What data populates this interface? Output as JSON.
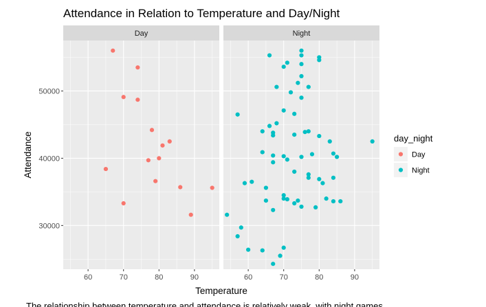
{
  "chart_data": {
    "type": "scatter",
    "title": "Attendance in Relation to Temperature and Day/Night",
    "xlabel": "Temperature",
    "ylabel": "Attendance",
    "facets": [
      "Day",
      "Night"
    ],
    "xlim": [
      53,
      97
    ],
    "ylim": [
      23500,
      57500
    ],
    "x_ticks": [
      60,
      70,
      80,
      90
    ],
    "y_ticks": [
      30000,
      40000,
      50000
    ],
    "y_tick_labels": [
      "30000",
      "40000",
      "50000"
    ],
    "grid": true,
    "legend": {
      "title": "day_night",
      "placement": "right",
      "entries": [
        {
          "label": "Day",
          "color": "#F8766D"
        },
        {
          "label": "Night",
          "color": "#00BFC4"
        }
      ]
    },
    "series": [
      {
        "name": "Day",
        "facet": "Day",
        "color": "#F8766D",
        "points": [
          [
            67,
            56000
          ],
          [
            74,
            53500
          ],
          [
            70,
            49100
          ],
          [
            74,
            48700
          ],
          [
            78,
            44200
          ],
          [
            83,
            42500
          ],
          [
            81,
            41900
          ],
          [
            80,
            40000
          ],
          [
            77,
            39700
          ],
          [
            65,
            38400
          ],
          [
            79,
            36600
          ],
          [
            86,
            35700
          ],
          [
            95,
            35600
          ],
          [
            70,
            33300
          ],
          [
            89,
            31600
          ]
        ]
      },
      {
        "name": "Night",
        "facet": "Night",
        "color": "#00BFC4",
        "points": [
          [
            75,
            56000
          ],
          [
            66,
            55300
          ],
          [
            75,
            55300
          ],
          [
            80,
            55000
          ],
          [
            80,
            54600
          ],
          [
            71,
            54200
          ],
          [
            75,
            54000
          ],
          [
            70,
            53600
          ],
          [
            75,
            52200
          ],
          [
            74,
            51200
          ],
          [
            68,
            50600
          ],
          [
            77,
            50600
          ],
          [
            72,
            49800
          ],
          [
            75,
            49000
          ],
          [
            70,
            47100
          ],
          [
            57,
            46500
          ],
          [
            73,
            46600
          ],
          [
            68,
            45200
          ],
          [
            66,
            44800
          ],
          [
            64,
            44000
          ],
          [
            67,
            43800
          ],
          [
            67,
            43400
          ],
          [
            76,
            43900
          ],
          [
            77,
            44000
          ],
          [
            80,
            43300
          ],
          [
            73,
            43500
          ],
          [
            83,
            42500
          ],
          [
            95,
            42500
          ],
          [
            64,
            40900
          ],
          [
            67,
            40400
          ],
          [
            70,
            40300
          ],
          [
            71,
            39800
          ],
          [
            75,
            40200
          ],
          [
            78,
            40600
          ],
          [
            84,
            40700
          ],
          [
            85,
            40200
          ],
          [
            67,
            39400
          ],
          [
            73,
            38000
          ],
          [
            77,
            37600
          ],
          [
            77,
            37100
          ],
          [
            80,
            36900
          ],
          [
            84,
            37100
          ],
          [
            59,
            36300
          ],
          [
            61,
            36500
          ],
          [
            65,
            35600
          ],
          [
            81,
            36300
          ],
          [
            70,
            34500
          ],
          [
            70,
            34000
          ],
          [
            71,
            33900
          ],
          [
            65,
            33700
          ],
          [
            74,
            33700
          ],
          [
            82,
            34000
          ],
          [
            84,
            33600
          ],
          [
            86,
            33600
          ],
          [
            73,
            33300
          ],
          [
            75,
            32800
          ],
          [
            79,
            32700
          ],
          [
            67,
            32300
          ],
          [
            54,
            31600
          ],
          [
            58,
            29700
          ],
          [
            57,
            28400
          ],
          [
            60,
            26400
          ],
          [
            64,
            26300
          ],
          [
            70,
            26700
          ],
          [
            69,
            25500
          ],
          [
            67,
            24300
          ]
        ]
      }
    ]
  },
  "caption": "The relationship between temperature and attendance is relatively weak, with night games"
}
